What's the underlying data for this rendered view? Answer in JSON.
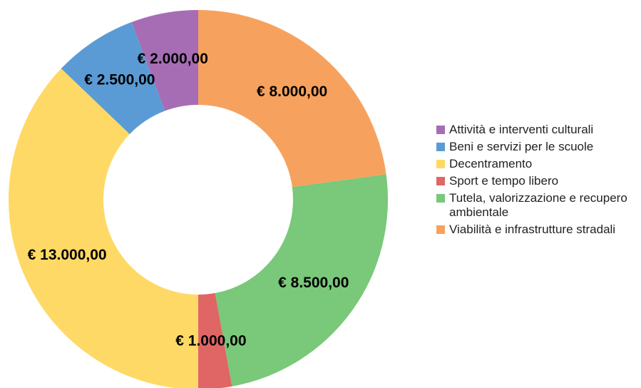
{
  "chart_data": {
    "type": "donut",
    "categories": [
      "Attività e interventi culturali",
      "Beni e servizi per le scuole",
      "Decentramento",
      "Sport e tempo libero",
      "Tutela, valorizzazione e recupero ambientale",
      "Viabilità e infrastrutture stradali"
    ],
    "values": [
      2000,
      2500,
      13000,
      1000,
      8500,
      8000
    ],
    "value_labels": [
      "€ 2.000,00",
      "€ 2.500,00",
      "€ 13.000,00",
      "€ 1.000,00",
      "€ 8.500,00",
      "€ 8.000,00"
    ],
    "colors": [
      "#a66db5",
      "#5b9bd5",
      "#ffd966",
      "#e06666",
      "#7ac87a",
      "#f6a25e"
    ],
    "direction": "counterclockwise",
    "legend": "right"
  }
}
